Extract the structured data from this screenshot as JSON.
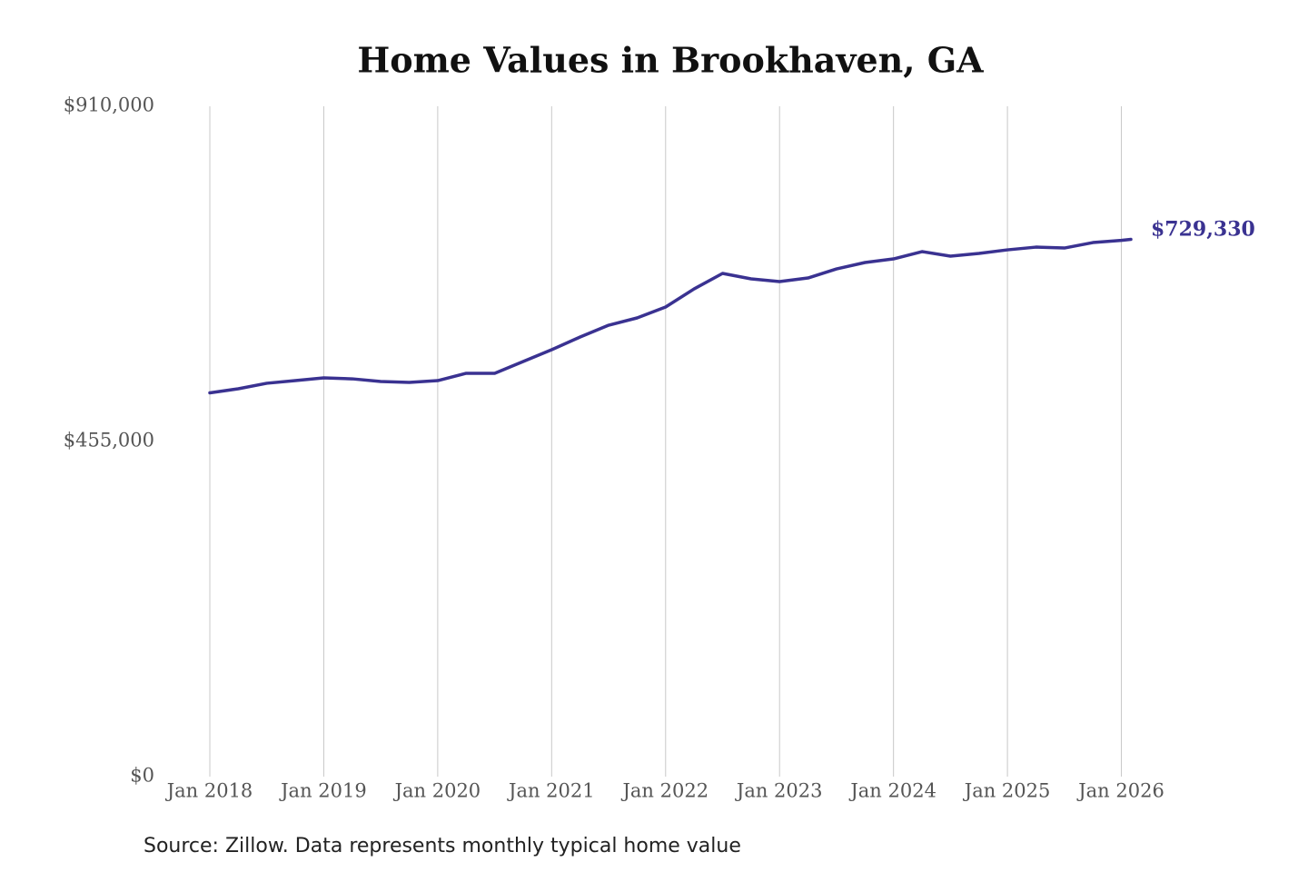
{
  "chart_data": {
    "type": "line",
    "title": "Home Values in Brookhaven, GA",
    "source": "Source: Zillow. Data represents monthly typical home value",
    "x": [
      "2018-01",
      "2018-04",
      "2018-07",
      "2018-10",
      "2019-01",
      "2019-04",
      "2019-07",
      "2019-10",
      "2020-01",
      "2020-04",
      "2020-07",
      "2020-10",
      "2021-01",
      "2021-04",
      "2021-07",
      "2021-10",
      "2022-01",
      "2022-04",
      "2022-07",
      "2022-10",
      "2023-01",
      "2023-04",
      "2023-07",
      "2023-10",
      "2024-01",
      "2024-04",
      "2024-07",
      "2024-10",
      "2025-01",
      "2025-04",
      "2025-07",
      "2025-10",
      "2026-01",
      "2026-02"
    ],
    "values": [
      521000,
      526500,
      534000,
      537600,
      541300,
      540000,
      536400,
      535100,
      537600,
      547500,
      547500,
      563500,
      579500,
      596800,
      612800,
      622700,
      637500,
      662100,
      683100,
      675700,
      672000,
      676900,
      689200,
      697900,
      702800,
      712700,
      706500,
      710200,
      715100,
      718800,
      717600,
      725000,
      728000,
      729330
    ],
    "value_labels": [
      null,
      null,
      null,
      null,
      null,
      null,
      null,
      null,
      null,
      null,
      null,
      null,
      null,
      null,
      null,
      null,
      null,
      null,
      null,
      null,
      null,
      null,
      null,
      null,
      null,
      null,
      null,
      null,
      null,
      null,
      null,
      null,
      null,
      "$729,330"
    ],
    "color": "#3a3291",
    "xlim": [
      "2018-01",
      "2026-02"
    ],
    "xticks": [
      {
        "value": "2018-01",
        "label": "Jan 2018"
      },
      {
        "value": "2019-01",
        "label": "Jan 2019"
      },
      {
        "value": "2020-01",
        "label": "Jan 2020"
      },
      {
        "value": "2021-01",
        "label": "Jan 2021"
      },
      {
        "value": "2022-01",
        "label": "Jan 2022"
      },
      {
        "value": "2023-01",
        "label": "Jan 2023"
      },
      {
        "value": "2024-01",
        "label": "Jan 2024"
      },
      {
        "value": "2025-01",
        "label": "Jan 2025"
      },
      {
        "value": "2026-01",
        "label": "Jan 2026"
      }
    ],
    "ylim": [
      0,
      910000
    ],
    "yticks": [
      {
        "value": 0,
        "label": "$0"
      },
      {
        "value": 455000,
        "label": "$455,000"
      },
      {
        "value": 910000,
        "label": "$910,000"
      }
    ],
    "grid": "x"
  }
}
